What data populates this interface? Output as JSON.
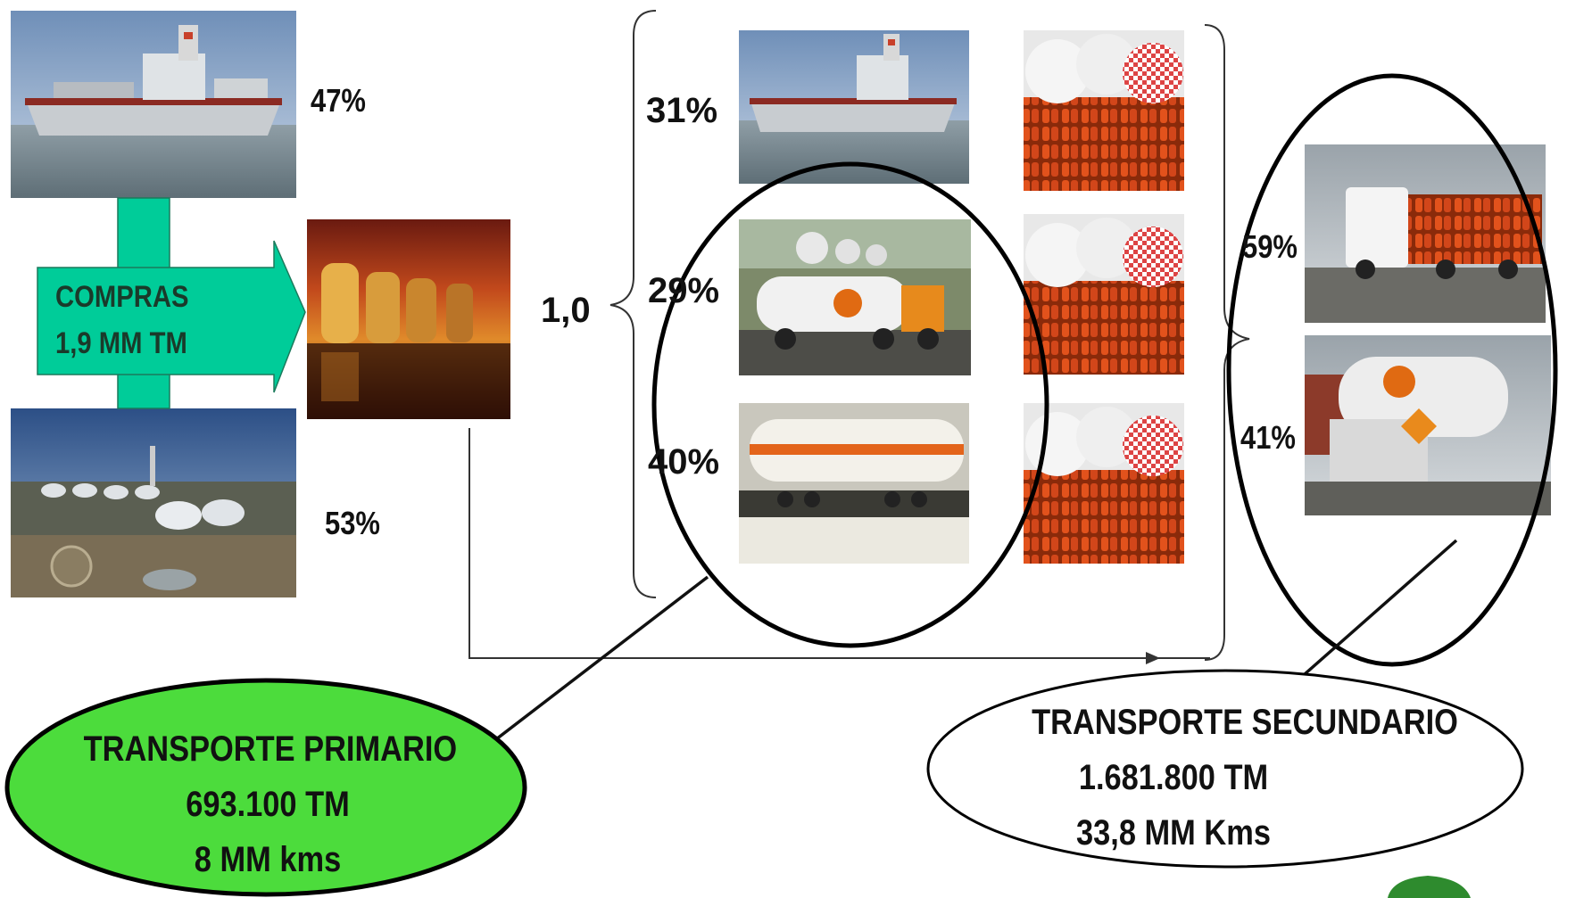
{
  "purchase": {
    "title": "COMPRAS",
    "quantity": "1,9 MM TM",
    "ship_share": "47%",
    "refinery_share": "53%"
  },
  "distribution": {
    "factor": "1,0",
    "ship_share": "31%",
    "truck_share": "29%",
    "rail_share": "40%"
  },
  "secondary_split": {
    "truck_share": "59%",
    "tanker_share": "41%"
  },
  "primary_transport": {
    "title": "TRANSPORTE PRIMARIO",
    "tonnage": "693.100 TM",
    "distance": "8 MM kms",
    "fill_color": "#4cdc3c"
  },
  "secondary_transport": {
    "title": "TRANSPORTE SECUNDARIO",
    "tonnage": "1.681.800 TM",
    "distance": "33,8 MM Kms"
  },
  "colors": {
    "arrow_fill": "#00cc99",
    "cylinder": "#d84a1a",
    "logo": "#2e8b2e"
  }
}
